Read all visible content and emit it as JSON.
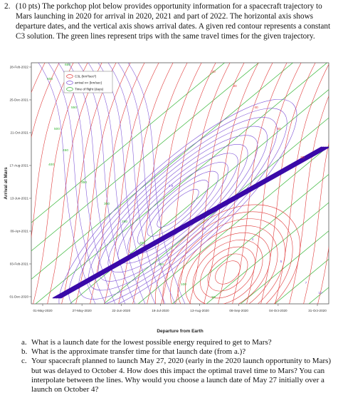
{
  "question": {
    "number": "2.",
    "text": "(10 pts) The porkchop plot below provides opportunity information for a spacecraft trajectory to Mars launching in 2020 for arrival in 2020, 2021 and part of 2022. The horizontal axis shows departure dates, and the vertical axis shows arrival dates. A given red contour represents a constant C3 solution. The green lines represent trips with the same travel times for the given trajectory."
  },
  "chart_data": {
    "type": "contour",
    "xlabel": "Departure from Earth",
    "ylabel": "Arrival at Mars",
    "x_ticks": [
      "01-May-2020",
      "27-May-2020",
      "22-Jun-2020",
      "18-Jul-2020",
      "13-Aug-2020",
      "08-Sep-2020",
      "04-Oct-2020",
      "31-Oct-2020"
    ],
    "y_ticks": [
      "01-Dec-2020",
      "03-Feb-2021",
      "09-Apr-2021",
      "13-Jun-2021",
      "17-Aug-2021",
      "21-Oct-2021",
      "25-Dec-2021",
      "28-Feb-2022"
    ],
    "legend": [
      {
        "label": "C3L (km²/sec²)",
        "color": "#e03a3a"
      },
      {
        "label": "arrival v∞ (km/sec)",
        "color": "#7b4fd6"
      },
      {
        "label": "Time of flight (days)",
        "color": "#35b535"
      }
    ],
    "annotations": [
      {
        "text": "650",
        "series": "tof"
      },
      {
        "text": "600",
        "series": "tof"
      },
      {
        "text": "550",
        "series": "tof"
      },
      {
        "text": "500",
        "series": "tof"
      },
      {
        "text": "450",
        "series": "tof"
      },
      {
        "text": "400",
        "series": "tof"
      },
      {
        "text": "350",
        "series": "tof"
      },
      {
        "text": "300",
        "series": "tof"
      },
      {
        "text": "250",
        "series": "tof"
      },
      {
        "text": "200",
        "series": "tof"
      },
      {
        "text": "150",
        "series": "tof"
      },
      {
        "text": "100",
        "series": "tof"
      },
      {
        "text": "50",
        "series": "tof"
      },
      {
        "text": "20",
        "series": "c3"
      },
      {
        "text": "30",
        "series": "c3"
      },
      {
        "text": "40",
        "series": "c3"
      },
      {
        "text": "60",
        "series": "c3"
      },
      {
        "text": "80",
        "series": "c3"
      },
      {
        "text": "2.9",
        "series": "vinf"
      },
      {
        "text": "3.5",
        "series": "vinf"
      },
      {
        "text": "4",
        "series": "vinf"
      },
      {
        "text": "5",
        "series": "vinf"
      },
      {
        "text": "7",
        "series": "vinf"
      },
      {
        "text": "10",
        "series": "vinf"
      }
    ],
    "colors": {
      "c3": "#e03a3a",
      "vinf": "#7b4fd6",
      "tof": "#35b535",
      "ridge": "#3a0aa8"
    }
  },
  "subquestions": [
    {
      "label": "a.",
      "text": "What is a launch date for the lowest possible energy required to get to Mars?"
    },
    {
      "label": "b.",
      "text": "What is the approximate transfer time for that launch date (from a.)?"
    },
    {
      "label": "c.",
      "text": "Your spacecraft planned to launch May 27, 2020 (early in the 2020 launch opportunity to Mars) but was delayed to October 4. How does this impact the optimal travel time to Mars? You can interpolate between the lines. Why would you choose a launch date of May 27 initially over a launch on October 4?"
    }
  ]
}
